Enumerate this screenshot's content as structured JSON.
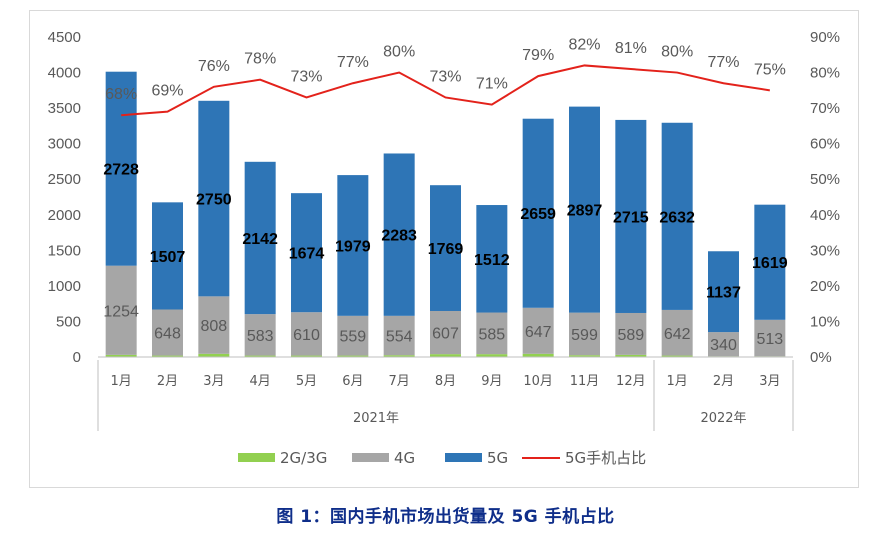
{
  "caption": "图 1：国内手机市场出货量及 5G 手机占比",
  "chart_data": {
    "type": "bar",
    "stacked": true,
    "categories": [
      "1月",
      "2月",
      "3月",
      "4月",
      "5月",
      "6月",
      "7月",
      "8月",
      "9月",
      "10月",
      "11月",
      "12月",
      "1月",
      "2月",
      "3月"
    ],
    "year_groups": [
      {
        "label": "2021年",
        "count": 12
      },
      {
        "label": "2022年",
        "count": 3
      }
    ],
    "series": [
      {
        "name": "2G/3G",
        "color": "#92d050",
        "values": [
          30,
          20,
          45,
          20,
          20,
          20,
          25,
          40,
          40,
          45,
          25,
          30,
          20,
          10,
          10
        ]
      },
      {
        "name": "4G",
        "color": "#a6a6a6",
        "values": [
          1254,
          648,
          808,
          583,
          610,
          559,
          554,
          607,
          585,
          647,
          599,
          589,
          642,
          340,
          513
        ]
      },
      {
        "name": "5G",
        "color": "#2e75b6",
        "values": [
          2728,
          1507,
          2750,
          2142,
          1674,
          1979,
          2283,
          1769,
          1512,
          2659,
          2897,
          2715,
          2632,
          1137,
          1619
        ]
      }
    ],
    "line": {
      "name": "5G手机占比",
      "color": "#e3221b",
      "values": [
        68,
        69,
        76,
        78,
        73,
        77,
        80,
        73,
        71,
        79,
        82,
        81,
        80,
        77,
        75
      ],
      "labels": [
        "68%",
        "69%",
        "76%",
        "78%",
        "73%",
        "77%",
        "80%",
        "73%",
        "71%",
        "79%",
        "82%",
        "81%",
        "80%",
        "77%",
        "75%"
      ]
    },
    "y_left": {
      "min": 0,
      "max": 4500,
      "ticks": [
        "0",
        "500",
        "1000",
        "1500",
        "2000",
        "2500",
        "3000",
        "3500",
        "4000",
        "4500"
      ]
    },
    "y_right": {
      "min": 0,
      "max": 90,
      "ticks": [
        "0%",
        "10%",
        "20%",
        "30%",
        "40%",
        "50%",
        "60%",
        "70%",
        "80%",
        "90%"
      ]
    },
    "legend_position": "bottom",
    "grid": false
  }
}
